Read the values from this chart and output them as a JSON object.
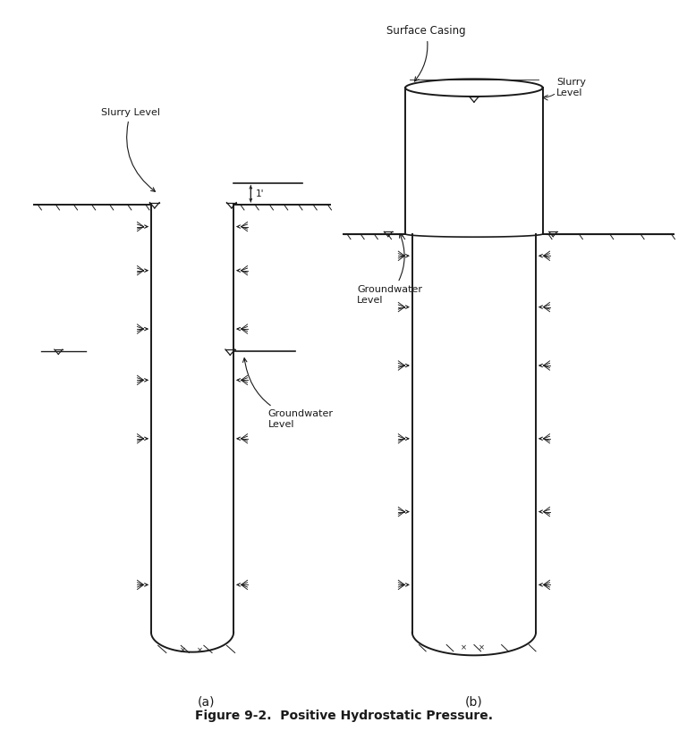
{
  "title": "Figure 9-2.  Positive Hydrostatic Pressure.",
  "title_fontsize": 10,
  "fig_width": 7.68,
  "fig_height": 8.18,
  "bg_color": "#ffffff",
  "line_color": "#1a1a1a",
  "label_a": "(a)",
  "label_b": "(b)",
  "slurry_level_label_a": "Slurry Level",
  "groundwater_level_label_a": "Groundwater\nLevel",
  "surface_casing_label": "Surface Casing",
  "slurry_level_b_label": "Slurry\nLevel",
  "groundwater_level_b_label": "Groundwater\nLevel",
  "one_foot_label": "1'"
}
